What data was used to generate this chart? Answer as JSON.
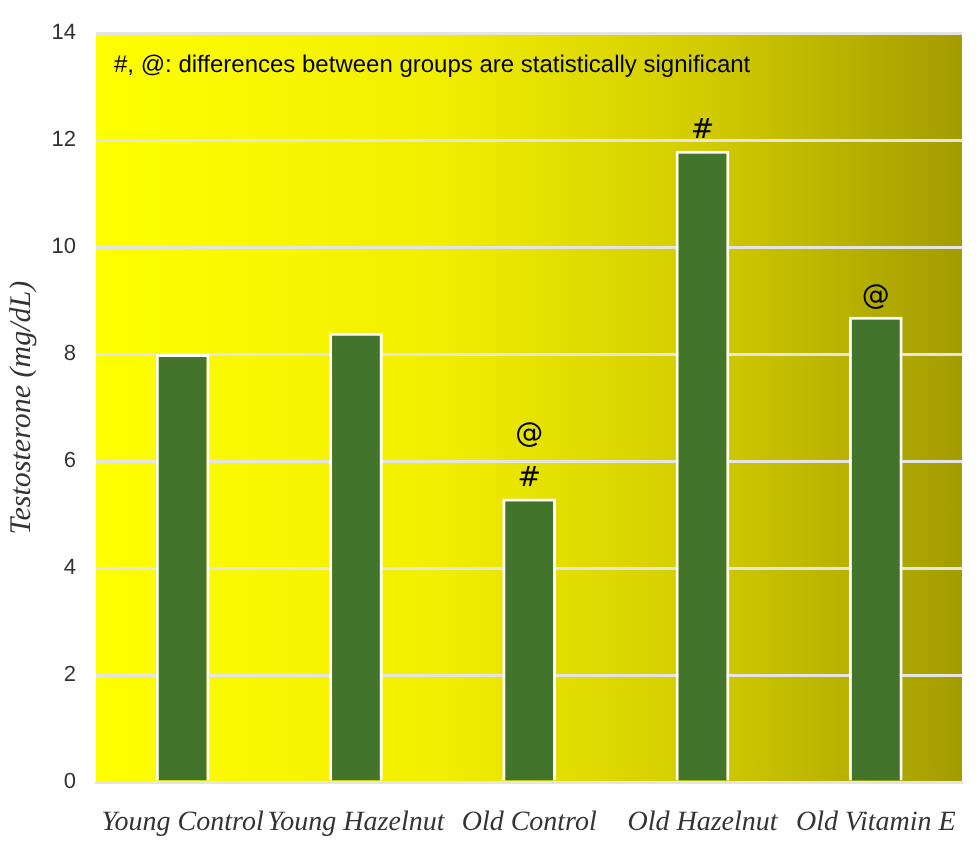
{
  "chart_data": {
    "type": "bar",
    "ylabel": "Testosterone (mg/dL)",
    "categories": [
      "Young Control",
      "Young Hazelnut",
      "Old Control",
      "Old Hazelnut",
      "Old Vitamin E"
    ],
    "values": [
      8.0,
      8.4,
      5.3,
      11.8,
      8.7
    ],
    "color": "#42742b",
    "ylim": [
      0,
      14
    ],
    "yticks": [
      0,
      2,
      4,
      6,
      8,
      10,
      12,
      14
    ],
    "grid": "y",
    "annotations": [
      "#, @: differences between groups are statistically significant",
      {
        "text": "#",
        "x": "Old Control",
        "y": 5.3
      },
      {
        "text": "@",
        "x": "Old Control",
        "y": 5.3
      },
      {
        "text": "#",
        "x": "Old Hazelnut",
        "y": 11.8
      },
      {
        "text": "@",
        "x": "Old Vitamin E",
        "y": 8.7
      }
    ]
  }
}
